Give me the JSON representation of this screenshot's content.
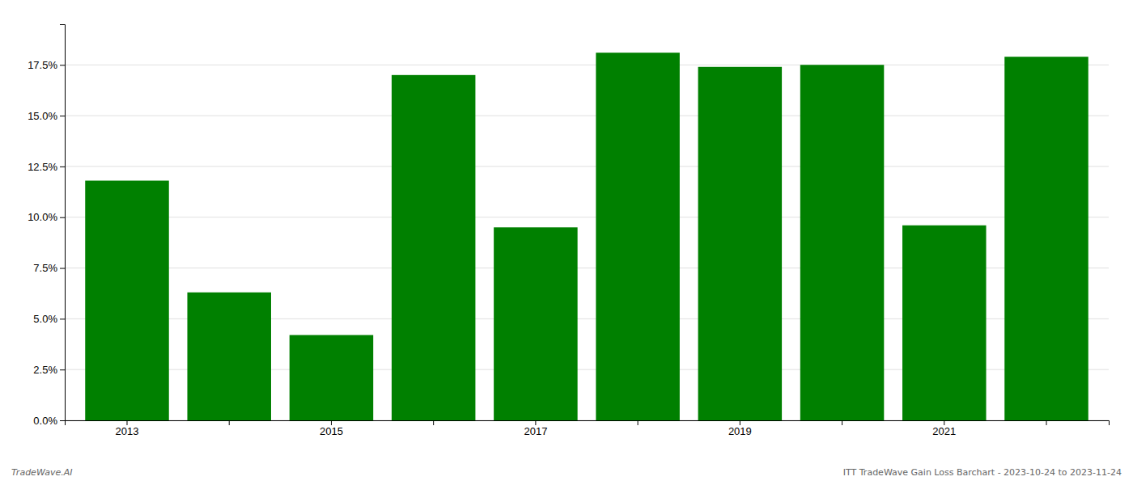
{
  "chart_data": {
    "type": "bar",
    "categories": [
      "2013",
      null,
      "2015",
      null,
      "2017",
      null,
      "2019",
      null,
      "2021",
      null
    ],
    "values": [
      0.118,
      0.063,
      0.042,
      0.17,
      0.095,
      0.181,
      0.174,
      0.175,
      0.096,
      0.179
    ],
    "color": "#008000",
    "ylim": [
      0,
      0.195
    ],
    "yticks": [
      {
        "value": 0.0,
        "label": "0.0%"
      },
      {
        "value": 0.025,
        "label": "2.5%"
      },
      {
        "value": 0.05,
        "label": "5.0%"
      },
      {
        "value": 0.075,
        "label": "7.5%"
      },
      {
        "value": 0.1,
        "label": "10.0%"
      },
      {
        "value": 0.125,
        "label": "12.5%"
      },
      {
        "value": 0.15,
        "label": "15.0%"
      },
      {
        "value": 0.175,
        "label": "17.5%"
      }
    ],
    "grid": true,
    "annotations": [
      "TradeWave.AI",
      "ITT TradeWave Gain Loss Barchart - 2023-10-24 to 2023-11-24"
    ]
  }
}
